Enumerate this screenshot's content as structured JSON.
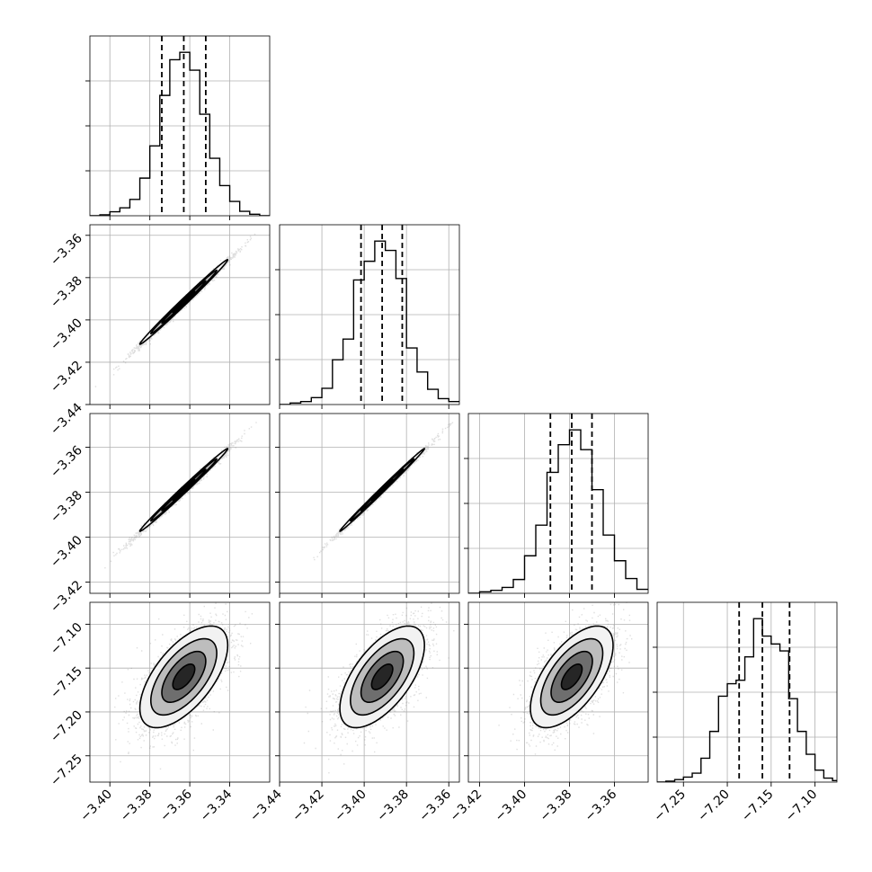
{
  "chart_data": {
    "type": "corner",
    "title": "",
    "grid": true,
    "parameters": [
      {
        "index": 0,
        "range": [
          -3.41,
          -3.32
        ],
        "ticks": [
          -3.4,
          -3.38,
          -3.36,
          -3.34
        ],
        "tick_labels": [
          "−3.40",
          "−3.38",
          "−3.36",
          "−3.34"
        ],
        "quantiles": [
          -3.374,
          -3.363,
          -3.352
        ]
      },
      {
        "index": 1,
        "range": [
          -3.44,
          -3.355
        ],
        "ticks": [
          -3.44,
          -3.42,
          -3.4,
          -3.38,
          -3.36
        ],
        "tick_labels": [
          "−3.44",
          "−3.42",
          "−3.40",
          "−3.38",
          "−3.36"
        ],
        "quantiles": [
          -3.4015,
          -3.3915,
          -3.382
        ]
      },
      {
        "index": 2,
        "range": [
          -3.425,
          -3.345
        ],
        "ticks": [
          -3.42,
          -3.4,
          -3.38,
          -3.36
        ],
        "tick_labels": [
          "−3.42",
          "−3.40",
          "−3.38",
          "−3.36"
        ],
        "quantiles": [
          -3.3885,
          -3.379,
          -3.37
        ]
      },
      {
        "index": 3,
        "range": [
          -7.28,
          -7.075
        ],
        "ticks": [
          -7.25,
          -7.2,
          -7.15,
          -7.1
        ],
        "tick_labels": [
          "−7.25",
          "−7.20",
          "−7.15",
          "−7.10"
        ],
        "quantiles": [
          -7.1865,
          -7.16,
          -7.129
        ]
      }
    ],
    "histograms": [
      {
        "param": 0,
        "bin_edges": [
          -3.41,
          -3.405,
          -3.4,
          -3.395,
          -3.39,
          -3.385,
          -3.38,
          -3.375,
          -3.37,
          -3.365,
          -3.36,
          -3.355,
          -3.35,
          -3.345,
          -3.34,
          -3.335,
          -3.33,
          -3.325,
          -3.32
        ],
        "counts": [
          0,
          2,
          8,
          16,
          33,
          76,
          141,
          243,
          315,
          330,
          294,
          205,
          116,
          61,
          29,
          9,
          3,
          0
        ]
      },
      {
        "param": 1,
        "bin_edges": [
          -3.44,
          -3.435,
          -3.43,
          -3.425,
          -3.42,
          -3.415,
          -3.41,
          -3.405,
          -3.4,
          -3.395,
          -3.39,
          -3.385,
          -3.38,
          -3.375,
          -3.37,
          -3.365,
          -3.36,
          -3.355
        ],
        "counts": [
          0,
          3,
          6,
          14,
          33,
          91,
          133,
          253,
          291,
          332,
          313,
          256,
          115,
          66,
          31,
          12,
          6
        ]
      },
      {
        "param": 2,
        "bin_edges": [
          -3.425,
          -3.42,
          -3.415,
          -3.41,
          -3.405,
          -3.4,
          -3.395,
          -3.39,
          -3.385,
          -3.38,
          -3.375,
          -3.37,
          -3.365,
          -3.36,
          -3.355,
          -3.35,
          -3.345
        ],
        "counts": [
          0,
          3,
          6,
          12,
          28,
          76,
          138,
          245,
          301,
          331,
          291,
          210,
          118,
          66,
          30,
          8
        ]
      },
      {
        "param": 3,
        "bin_edges": [
          -7.28,
          -7.27,
          -7.26,
          -7.25,
          -7.24,
          -7.23,
          -7.22,
          -7.21,
          -7.2,
          -7.19,
          -7.18,
          -7.17,
          -7.16,
          -7.15,
          -7.14,
          -7.13,
          -7.12,
          -7.11,
          -7.1,
          -7.09,
          -7.08,
          -7.075
        ],
        "counts": [
          0,
          2,
          5,
          10,
          18,
          48,
          102,
          173,
          198,
          205,
          252,
          329,
          294,
          278,
          264,
          168,
          102,
          56,
          24,
          8,
          3
        ]
      }
    ],
    "pairs": [
      {
        "x_param": 0,
        "y_param": 1,
        "mean": [
          -3.363,
          -3.3915
        ],
        "std": [
          0.011,
          0.01
        ],
        "correlation": 0.995
      },
      {
        "x_param": 0,
        "y_param": 2,
        "mean": [
          -3.363,
          -3.379
        ],
        "std": [
          0.011,
          0.0092
        ],
        "correlation": 0.995
      },
      {
        "x_param": 1,
        "y_param": 2,
        "mean": [
          -3.3915,
          -3.379
        ],
        "std": [
          0.01,
          0.0092
        ],
        "correlation": 0.997
      },
      {
        "x_param": 0,
        "y_param": 3,
        "mean": [
          -3.363,
          -7.16
        ],
        "std": [
          0.011,
          0.029
        ],
        "correlation": 0.62
      },
      {
        "x_param": 1,
        "y_param": 3,
        "mean": [
          -3.3915,
          -7.16
        ],
        "std": [
          0.01,
          0.029
        ],
        "correlation": 0.62
      },
      {
        "x_param": 2,
        "y_param": 3,
        "mean": [
          -3.379,
          -7.16
        ],
        "std": [
          0.0092,
          0.029
        ],
        "correlation": 0.62
      }
    ],
    "contour_levels_sigma": [
      0.5,
      1.0,
      1.5,
      2.0
    ]
  },
  "colors": {
    "background": "#ffffff",
    "axes": "#000000",
    "grid": "#b0b0b0",
    "scatter": "#808080"
  }
}
